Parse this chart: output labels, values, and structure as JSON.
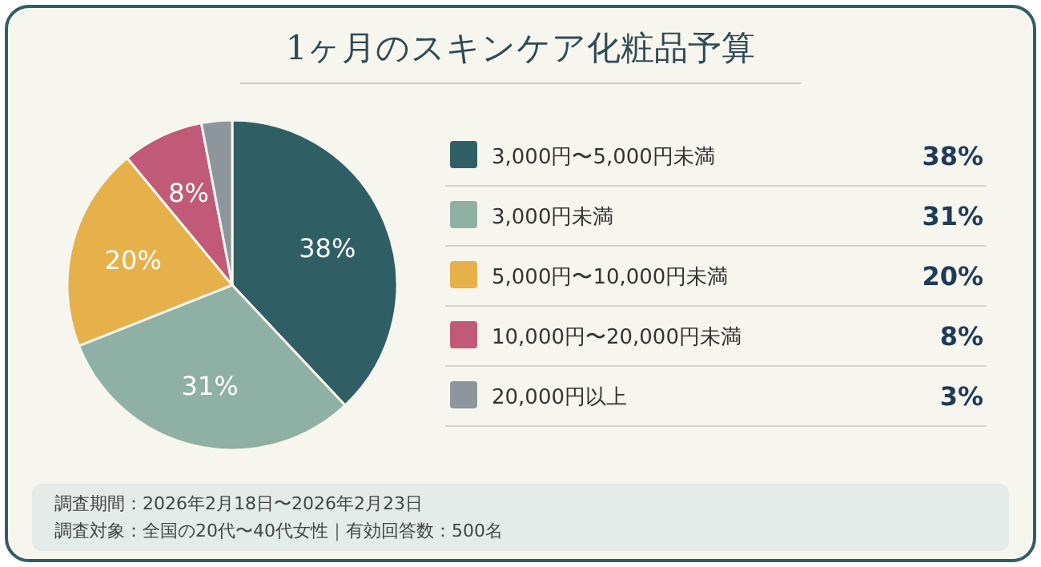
{
  "chart_data": {
    "type": "pie",
    "title": "1ヶ月のスキンケア化粧品予算",
    "categories": [
      "3,000円〜5,000円未満",
      "3,000円未満",
      "5,000円〜10,000円未満",
      "10,000円〜20,000円未満",
      "20,000円以上"
    ],
    "values": [
      38,
      31,
      20,
      8,
      3
    ],
    "colors": [
      "#2f5f64",
      "#8fb0a4",
      "#e6b04b",
      "#c05a78",
      "#8c969c"
    ],
    "value_labels": [
      "38%",
      "31%",
      "20%",
      "8%",
      "3%"
    ],
    "legend": "right",
    "annotations": [
      "調査期間：2026年2月18日〜2026年2月23日",
      "調査対象：全国の20代〜40代女性｜有効回答数：500名"
    ]
  }
}
